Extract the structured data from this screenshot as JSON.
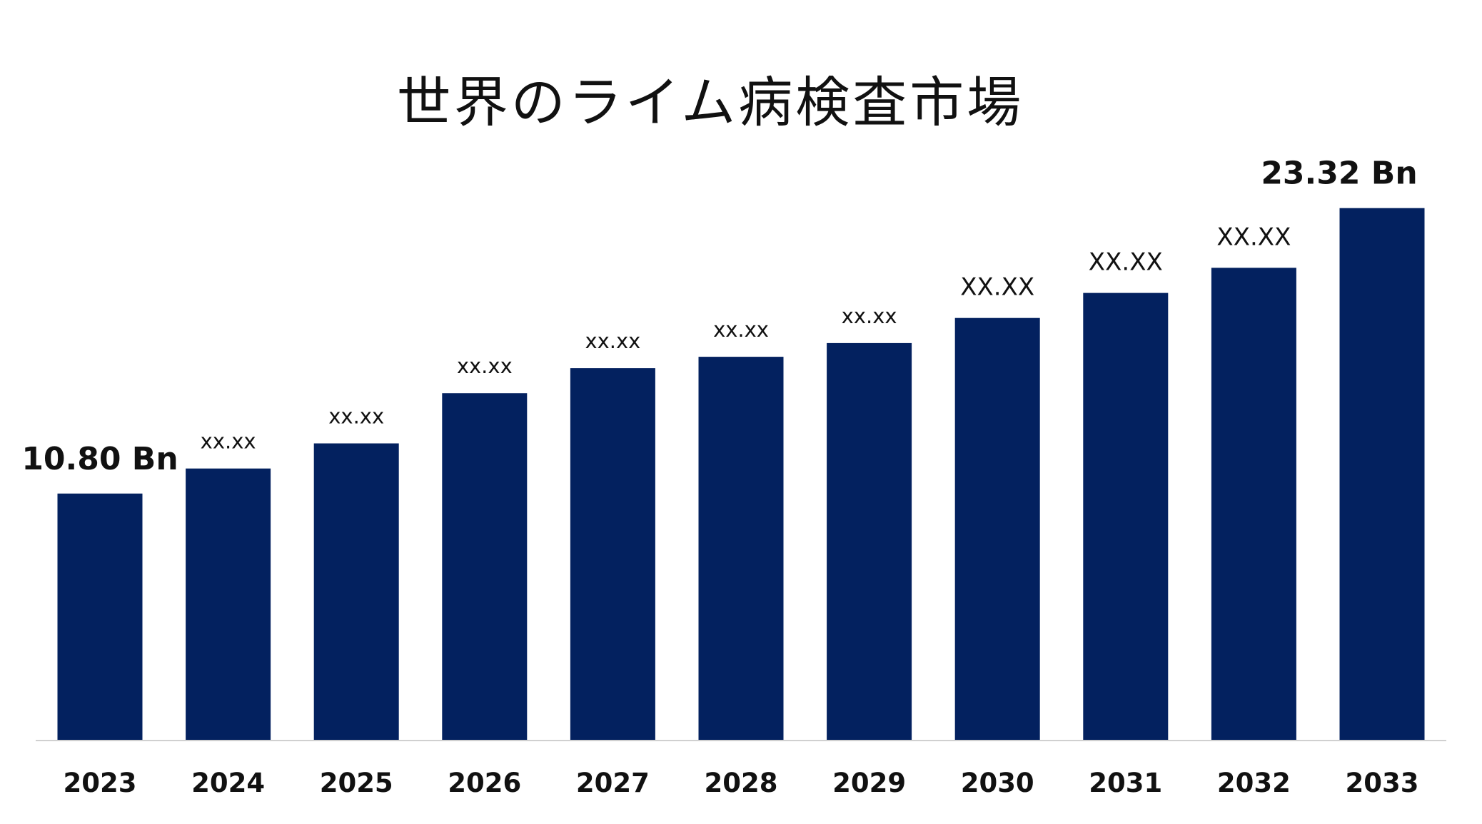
{
  "chart_data": {
    "type": "bar",
    "title": "世界のライム病検査市場",
    "xlabel": "",
    "ylabel": "",
    "categories": [
      "2023",
      "2024",
      "2025",
      "2026",
      "2027",
      "2028",
      "2029",
      "2030",
      "2031",
      "2032",
      "2033"
    ],
    "values": [
      10.8,
      11.9,
      13.0,
      15.2,
      16.3,
      16.8,
      17.4,
      18.5,
      19.6,
      20.7,
      23.32
    ],
    "data_labels": [
      "10.80 Bn",
      "xx.xx",
      "xx.xx",
      "xx.xx",
      "xx.xx",
      "xx.xx",
      "xx.xx",
      "XX.XX",
      "XX.XX",
      "XX.XX",
      "23.32 Bn"
    ],
    "ylim": [
      0,
      25
    ],
    "grid": false,
    "legend": "none",
    "bar_color": "#03215f",
    "axis_color": "#d0d0d0"
  }
}
